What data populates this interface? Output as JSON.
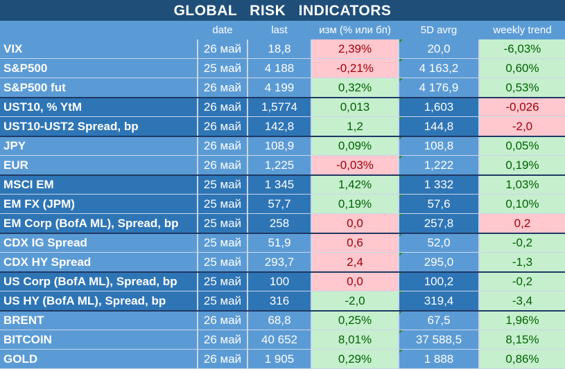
{
  "title": "GLOBAL   RISK   INDICATORS",
  "headers": {
    "name": "",
    "date": "date",
    "last": "last",
    "change": "изм (% или бп)",
    "avg": "5D avrg",
    "trend": "weekly trend"
  },
  "colors": {
    "title_bg": "#1f4e79",
    "header_bg": "#5b9bd5",
    "group_light": "#5b9bd5",
    "group_dark": "#2e75b6",
    "positive_fill": "#c6efce",
    "positive_text": "#006100",
    "negative_fill": "#ffc7ce",
    "negative_text": "#9c0006"
  },
  "rows": [
    {
      "name": "VIX",
      "date": "26 май",
      "last": "18,8",
      "change": "2,39%",
      "change_sign": "neg",
      "avg": "20,0",
      "trend": "-6,03%",
      "trend_sign": "pos"
    },
    {
      "name": "S&P500",
      "date": "25 май",
      "last": "4 188",
      "change": "-0,21%",
      "change_sign": "neg",
      "avg": "4 163,2",
      "trend": "0,60%",
      "trend_sign": "pos"
    },
    {
      "name": "S&P500 fut",
      "date": "26 май",
      "last": "4 199",
      "change": "0,32%",
      "change_sign": "pos",
      "avg": "4 176,9",
      "trend": "0,53%",
      "trend_sign": "pos"
    },
    {
      "name": "UST10, % YtM",
      "date": "26 май",
      "last": "1,5774",
      "change": "0,013",
      "change_sign": "pos",
      "avg": "1,603",
      "trend": "-0,026",
      "trend_sign": "neg"
    },
    {
      "name": "UST10-UST2 Spread, bp",
      "date": "26 май",
      "last": "142,8",
      "change": "1,2",
      "change_sign": "pos",
      "avg": "144,8",
      "trend": "-2,0",
      "trend_sign": "neg"
    },
    {
      "name": "JPY",
      "date": "26 май",
      "last": "108,9",
      "change": "0,09%",
      "change_sign": "pos",
      "avg": "108,8",
      "trend": "0,05%",
      "trend_sign": "pos"
    },
    {
      "name": "EUR",
      "date": "26 май",
      "last": "1,225",
      "change": "-0,03%",
      "change_sign": "neg",
      "avg": "1,222",
      "trend": "0,19%",
      "trend_sign": "pos"
    },
    {
      "name": "MSCI EM",
      "date": "25 май",
      "last": "1 345",
      "change": "1,42%",
      "change_sign": "pos",
      "avg": "1 332",
      "trend": "1,03%",
      "trend_sign": "pos"
    },
    {
      "name": "EM FX (JPM)",
      "date": "25 май",
      "last": "57,7",
      "change": "0,19%",
      "change_sign": "pos",
      "avg": "57,6",
      "trend": "0,10%",
      "trend_sign": "pos"
    },
    {
      "name": "EM Corp (BofA ML), Spread, bp",
      "date": "25 май",
      "last": "258",
      "change": "0,0",
      "change_sign": "neg",
      "avg": "257,8",
      "trend": "0,2",
      "trend_sign": "neg"
    },
    {
      "name": "CDX IG Spread",
      "date": "25 май",
      "last": "51,9",
      "change": "0,6",
      "change_sign": "neg",
      "avg": "52,0",
      "trend": "-0,2",
      "trend_sign": "pos"
    },
    {
      "name": "CDX HY Spread",
      "date": "25 май",
      "last": "293,7",
      "change": "2,4",
      "change_sign": "neg",
      "avg": "295,0",
      "trend": "-1,3",
      "trend_sign": "pos"
    },
    {
      "name": "US Corp (BofA ML), Spread, bp",
      "date": "25 май",
      "last": "100",
      "change": "0,0",
      "change_sign": "neg",
      "avg": "100,2",
      "trend": "-0,2",
      "trend_sign": "pos"
    },
    {
      "name": "US HY (BofA ML), Spread, bp",
      "date": "25 май",
      "last": "316",
      "change": "-2,0",
      "change_sign": "pos",
      "avg": "319,4",
      "trend": "-3,4",
      "trend_sign": "pos"
    },
    {
      "name": "BRENT",
      "date": "26 май",
      "last": "68,8",
      "change": "0,25%",
      "change_sign": "pos",
      "avg": "67,5",
      "trend": "1,96%",
      "trend_sign": "pos"
    },
    {
      "name": "BITCOIN",
      "date": "26 май",
      "last": "40 652",
      "change": "8,01%",
      "change_sign": "pos",
      "avg": "37 588,5",
      "trend": "8,15%",
      "trend_sign": "pos"
    },
    {
      "name": "GOLD",
      "date": "26 май",
      "last": "1 905",
      "change": "0,29%",
      "change_sign": "pos",
      "avg": "1 888",
      "trend": "0,86%",
      "trend_sign": "pos"
    }
  ]
}
